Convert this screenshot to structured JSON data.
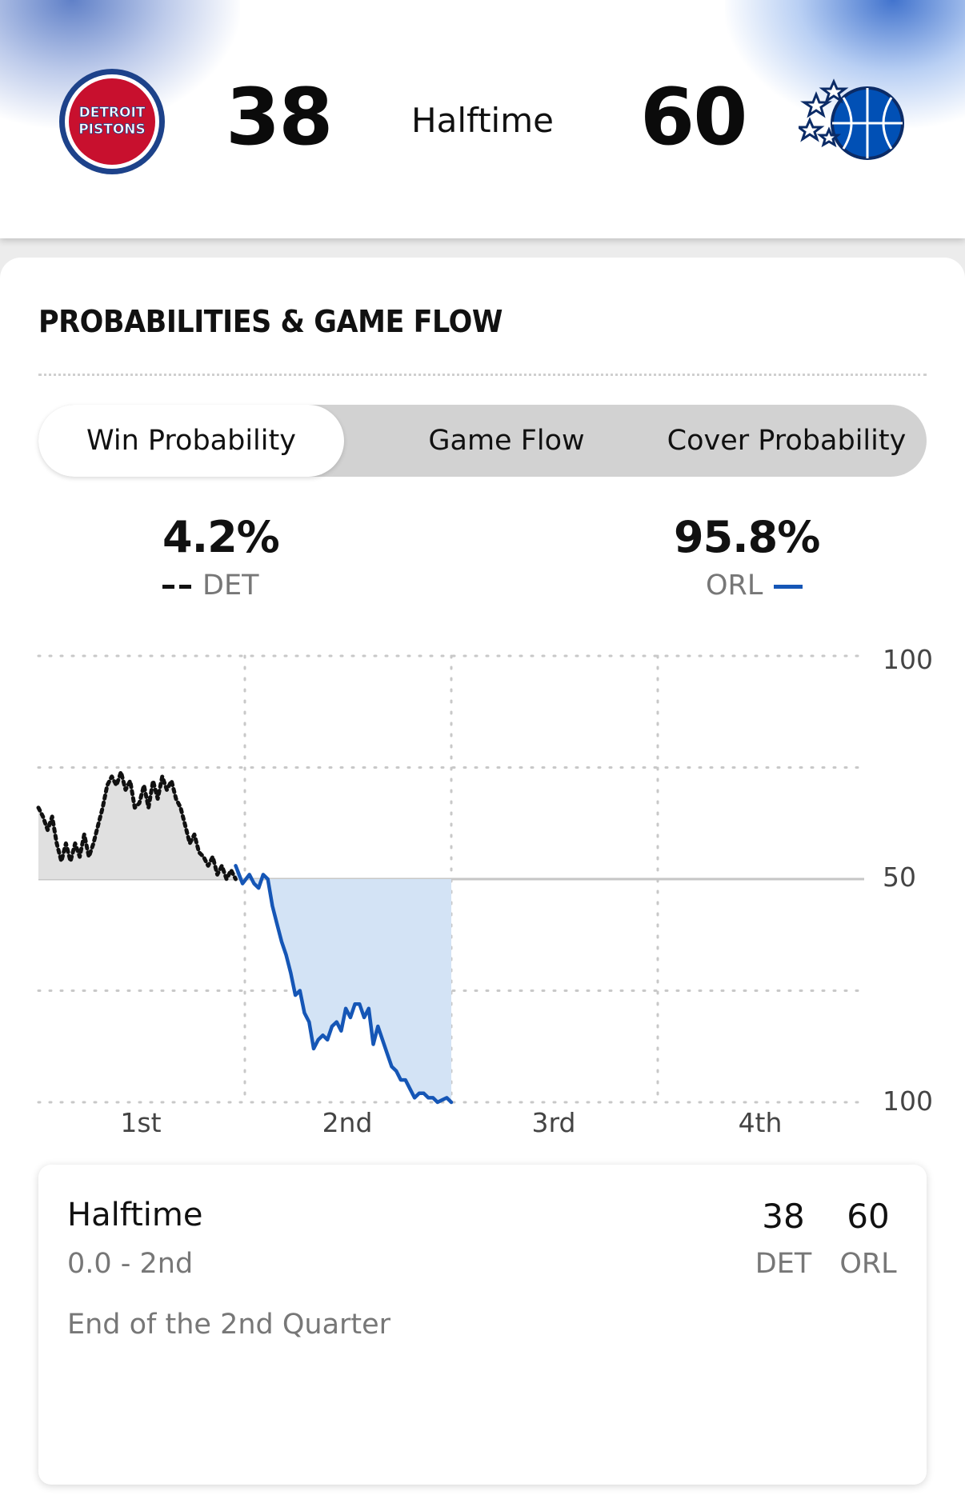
{
  "header": {
    "home_team": {
      "abbr": "DET",
      "score": "38",
      "logo_lines": [
        "DETROIT",
        "PISTONS"
      ],
      "color": "#c8102e",
      "ring_color": "#1d428a"
    },
    "away_team": {
      "abbr": "ORL",
      "score": "60",
      "logo": "orlando-magic-ball-icon",
      "color": "#0150b5"
    },
    "status": "Halftime"
  },
  "section": {
    "title": "PROBABILITIES & GAME FLOW",
    "tabs": [
      {
        "label": "Win Probability",
        "active": true
      },
      {
        "label": "Game Flow",
        "active": false
      },
      {
        "label": "Cover Probability",
        "active": false
      }
    ]
  },
  "probabilities": {
    "det": {
      "pct": "4.2%",
      "abbr": "DET"
    },
    "orl": {
      "pct": "95.8%",
      "abbr": "ORL"
    }
  },
  "chart_data": {
    "type": "area",
    "y_tick_labels": [
      "100",
      "50",
      "100"
    ],
    "x_tick_labels": [
      "1st",
      "2nd",
      "3rd",
      "4th"
    ],
    "colors": {
      "det": "#111111",
      "orl": "#1556b6",
      "det_fill": "#e0e0e0",
      "orl_fill": "#d3e3f5"
    },
    "series": [
      {
        "name": "DET",
        "x": [
          0,
          0.4,
          0.8,
          1.2,
          1.6,
          2.0,
          2.4,
          2.8,
          3.2,
          3.6,
          4.0,
          4.4,
          4.8,
          5.2,
          5.6,
          6.0,
          6.4,
          6.8,
          7.2,
          7.6,
          8.0,
          8.4,
          8.8,
          9.2,
          9.6,
          10.0,
          10.4,
          10.8,
          11.2,
          11.6,
          12.0,
          12.4,
          12.8,
          13.2,
          13.6,
          14.0,
          14.4,
          14.8,
          15.2,
          15.6,
          16.0,
          16.4,
          16.8,
          17.2
        ],
        "y": [
          66,
          64,
          61,
          64,
          58,
          54,
          58,
          54,
          58,
          55,
          60,
          55,
          58,
          62,
          66,
          71,
          73,
          71,
          74,
          70,
          72,
          66,
          67,
          71,
          66,
          72,
          68,
          73,
          70,
          72,
          68,
          66,
          62,
          58,
          60,
          56,
          55,
          53,
          55,
          51,
          53,
          50,
          52,
          50
        ]
      },
      {
        "name": "ORL",
        "x": [
          17.2,
          17.8,
          18.4,
          18.8,
          19.2,
          19.6,
          20.0,
          20.4,
          20.8,
          21.2,
          21.6,
          22.0,
          22.4,
          22.8,
          23.2,
          23.6,
          24.0,
          24.4,
          24.8,
          25.2,
          25.6,
          26.0,
          26.4,
          26.8,
          27.2,
          27.6,
          28.0,
          28.4,
          28.8,
          29.2,
          29.6,
          30.0,
          30.4,
          30.8,
          31.2,
          31.6,
          32.0,
          32.4,
          32.8,
          33.2,
          33.6,
          34.0,
          34.4,
          34.8,
          35.2,
          35.6,
          36.0
        ],
        "y": [
          53,
          49,
          51,
          49,
          48,
          51,
          50,
          44,
          40,
          36,
          33,
          29,
          24,
          25,
          20,
          18,
          12,
          14,
          15,
          14,
          17,
          18,
          16,
          21,
          19,
          22,
          22,
          19,
          21,
          13,
          17,
          14,
          11,
          8,
          7,
          5,
          5,
          3,
          1,
          2,
          2,
          1,
          1,
          0,
          0.5,
          1,
          0
        ]
      }
    ],
    "ylim": [
      0,
      100
    ],
    "xlim": [
      0,
      72
    ],
    "baseline": 50
  },
  "play": {
    "title": "Halftime",
    "time": "0.0 - 2nd",
    "description": "End of the 2nd Quarter",
    "home_score": "38",
    "away_score": "60",
    "home_abbr": "DET",
    "away_abbr": "ORL"
  }
}
